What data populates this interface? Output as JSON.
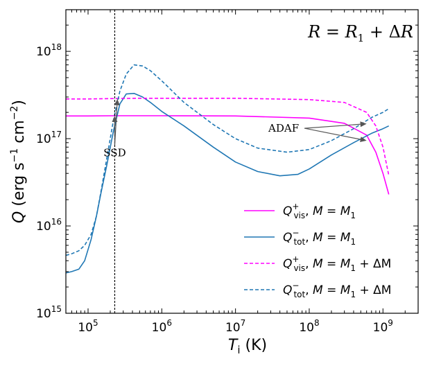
{
  "chart_data": {
    "type": "line",
    "title": "R = R1 + ΔR",
    "x_log": true,
    "y_log": true,
    "xlim": [
      50000,
      3000000000
    ],
    "ylim": [
      1000000000000000.0,
      3e+18
    ],
    "x_ticks": [
      {
        "value": 100000,
        "base": "10",
        "exp": "5"
      },
      {
        "value": 1000000,
        "base": "10",
        "exp": "6"
      },
      {
        "value": 10000000,
        "base": "10",
        "exp": "7"
      },
      {
        "value": 100000000,
        "base": "10",
        "exp": "8"
      },
      {
        "value": 1000000000,
        "base": "10",
        "exp": "9"
      }
    ],
    "y_ticks": [
      {
        "value": 1000000000000000.0,
        "base": "10",
        "exp": "15"
      },
      {
        "value": 1e+16,
        "base": "10",
        "exp": "16"
      },
      {
        "value": 1e+17,
        "base": "10",
        "exp": "17"
      },
      {
        "value": 1e+18,
        "base": "10",
        "exp": "18"
      }
    ],
    "xlabel": {
      "main": "T",
      "sub": "i",
      "unit": " (K)"
    },
    "ylabel": {
      "main": "Q",
      "unit": " (erg s",
      "sup1": "−1",
      "mid": " cm",
      "sup2": "−2",
      "end": ")"
    },
    "vline_x": 230000,
    "series": [
      {
        "name": "Q+vis, M = M1",
        "legend": {
          "q": "Q",
          "sup": "+",
          "sub": "vis",
          "rhs": "M",
          "rhs_sub": "1",
          "delta": ""
        },
        "color": "#ff00ff",
        "dash": false,
        "x": [
          50000,
          100000,
          230000,
          500000,
          1000000,
          10000000,
          100000000,
          300000000,
          600000000,
          800000000,
          1000000000,
          1200000000
        ],
        "y": [
          1.82e+17,
          1.82e+17,
          1.83e+17,
          1.83e+17,
          1.83e+17,
          1.82e+17,
          1.72e+17,
          1.5e+17,
          1.1e+17,
          7e+16,
          4e+16,
          2.3e+16
        ]
      },
      {
        "name": "Q-tot, M = M1",
        "legend": {
          "q": "Q",
          "sup": "−",
          "sub": "tot",
          "rhs": "M",
          "rhs_sub": "1",
          "delta": ""
        },
        "color": "#1f77b4",
        "dash": false,
        "x": [
          50000,
          60000,
          75000,
          90000,
          110000,
          130000,
          150000,
          180000,
          220000,
          270000,
          330000,
          420000,
          550000,
          700000,
          1000000,
          2000000,
          5000000,
          10000000,
          20000000,
          40000000,
          70000000,
          100000000,
          200000000,
          400000000,
          700000000,
          1000000000,
          1200000000
        ],
        "y": [
          2900000000000000.0,
          3000000000000000.0,
          3200000000000000.0,
          4000000000000000.0,
          7000000000000000.0,
          1.3e+16,
          2.4e+16,
          5e+16,
          1.2e+17,
          2.5e+17,
          3.25e+17,
          3.3e+17,
          3e+17,
          2.6e+17,
          2.05e+17,
          1.4e+17,
          8e+16,
          5.4e+16,
          4.2e+16,
          3.75e+16,
          3.9e+16,
          4.5e+16,
          6.5e+16,
          9e+16,
          1.15e+17,
          1.3e+17,
          1.4e+17
        ]
      },
      {
        "name": "Q+vis, M = M1 + ΔM",
        "legend": {
          "q": "Q",
          "sup": "+",
          "sub": "vis",
          "rhs": "M",
          "rhs_sub": "1",
          "delta": " + ΔM"
        },
        "color": "#ff00ff",
        "dash": true,
        "x": [
          50000,
          100000,
          230000,
          500000,
          1000000,
          10000000,
          100000000,
          300000000,
          600000000,
          800000000,
          1000000000,
          1200000000
        ],
        "y": [
          2.85e+17,
          2.85e+17,
          2.88e+17,
          2.9e+17,
          2.9e+17,
          2.9e+17,
          2.8e+17,
          2.6e+17,
          2e+17,
          1.4e+17,
          8e+16,
          3.8e+16
        ]
      },
      {
        "name": "Q-tot, M = M1 + ΔM",
        "legend": {
          "q": "Q",
          "sup": "−",
          "sub": "tot",
          "rhs": "M",
          "rhs_sub": "1",
          "delta": " + ΔM"
        },
        "color": "#1f77b4",
        "dash": true,
        "x": [
          50000,
          60000,
          75000,
          90000,
          110000,
          130000,
          150000,
          180000,
          220000,
          270000,
          330000,
          420000,
          550000,
          700000,
          1000000,
          2000000,
          5000000,
          10000000,
          20000000,
          50000000,
          100000000,
          200000000,
          400000000,
          700000000,
          1000000000,
          1200000000
        ],
        "y": [
          4600000000000000.0,
          4800000000000000.0,
          5200000000000000.0,
          6000000000000000.0,
          8000000000000000.0,
          1.3e+16,
          2.5e+16,
          6e+16,
          1.6e+17,
          3.5e+17,
          5.5e+17,
          7e+17,
          6.8e+17,
          6e+17,
          4.6e+17,
          2.6e+17,
          1.45e+17,
          1e+17,
          7.8e+16,
          7e+16,
          7.5e+16,
          9.5e+16,
          1.3e+17,
          1.75e+17,
          2e+17,
          2.2e+17
        ]
      }
    ],
    "annotations": [
      {
        "text": "SSD",
        "text_x": 230000,
        "text_y": 6.3e+16,
        "targets": [
          [
            230000,
            1.83e+17
          ],
          [
            250000,
            2.85e+17
          ]
        ]
      },
      {
        "text": "ADAF",
        "text_x": 45000000,
        "text_y": 1.2e+17,
        "targets": [
          [
            600000000,
            1.48e+17
          ],
          [
            600000000,
            9.5e+16
          ]
        ]
      }
    ],
    "legend_position": "lower-right"
  }
}
